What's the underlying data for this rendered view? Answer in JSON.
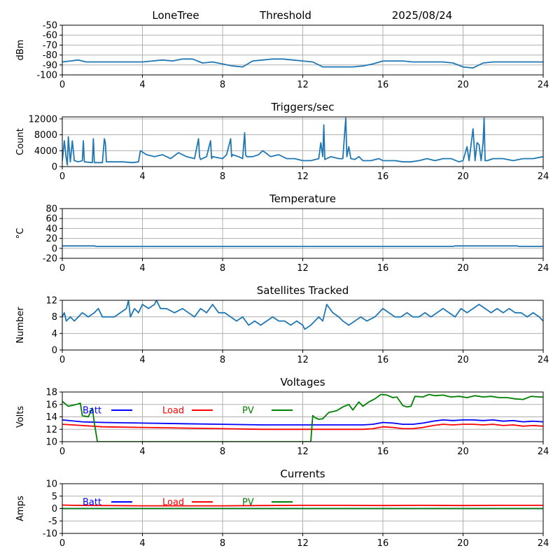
{
  "header": {
    "station": "LoneTree",
    "mode": "Threshold",
    "date": "2025/08/24"
  },
  "chart_data": [
    {
      "type": "line",
      "title": "",
      "ylabel": "dBm",
      "xlim": [
        0,
        24
      ],
      "ylim": [
        -100,
        -50
      ],
      "xticks": [
        0,
        4,
        8,
        12,
        16,
        20,
        24
      ],
      "yticks": [
        -100,
        -90,
        -80,
        -70,
        -60,
        -50
      ],
      "grid": true,
      "series": [
        {
          "color": "#1f77b4",
          "x": [
            0,
            0.4,
            0.8,
            1.2,
            2,
            3,
            4,
            4.5,
            5,
            5.5,
            6,
            6.5,
            7,
            7.5,
            8,
            8.5,
            9,
            9.5,
            10,
            10.5,
            11,
            11.5,
            12,
            12.5,
            13,
            13.5,
            14,
            14.5,
            15,
            15.5,
            16,
            16.5,
            17,
            17.5,
            18,
            18.5,
            19,
            19.5,
            20,
            20.5,
            21,
            21.5,
            22,
            22.5,
            23,
            24
          ],
          "y": [
            -87,
            -86,
            -85,
            -87,
            -87,
            -87,
            -87,
            -86,
            -85,
            -86,
            -84,
            -84,
            -88,
            -87,
            -89,
            -91,
            -92,
            -86,
            -85,
            -84,
            -84,
            -85,
            -86,
            -87,
            -92,
            -92,
            -92,
            -92,
            -91,
            -89,
            -86,
            -86,
            -86,
            -87,
            -87,
            -87,
            -87,
            -88,
            -92,
            -93,
            -88,
            -87,
            -87,
            -87,
            -87,
            -87
          ]
        }
      ]
    },
    {
      "type": "line",
      "title": "Triggers/sec",
      "ylabel": "Count",
      "xlim": [
        0,
        24
      ],
      "ylim": [
        0,
        12500
      ],
      "xticks": [
        0,
        4,
        8,
        12,
        16,
        20,
        24
      ],
      "yticks": [
        0,
        4000,
        8000,
        12000
      ],
      "grid": true,
      "series": [
        {
          "color": "#1f77b4",
          "x": [
            0,
            0.1,
            0.2,
            0.25,
            0.3,
            0.4,
            0.5,
            0.6,
            0.8,
            1,
            1.05,
            1.1,
            1.5,
            1.55,
            1.6,
            2,
            2.1,
            2.15,
            2.2,
            3,
            3.5,
            3.8,
            3.9,
            4.2,
            4.6,
            5,
            5.4,
            5.8,
            6.2,
            6.6,
            6.8,
            6.85,
            6.9,
            7.2,
            7.4,
            7.45,
            7.5,
            8,
            8.2,
            8.4,
            8.45,
            8.5,
            8.8,
            9,
            9.1,
            9.15,
            9.2,
            9.5,
            9.8,
            10,
            10.4,
            10.8,
            11.2,
            11.6,
            12,
            12.4,
            12.8,
            12.9,
            13,
            13.05,
            13.1,
            13.4,
            13.8,
            14,
            14.1,
            14.15,
            14.2,
            14.3,
            14.4,
            14.6,
            14.8,
            15,
            15.4,
            15.8,
            16,
            16.2,
            16.6,
            17,
            17.4,
            17.8,
            18.2,
            18.6,
            19,
            19.4,
            19.8,
            20,
            20.2,
            20.3,
            20.5,
            20.6,
            20.7,
            20.8,
            20.9,
            21,
            21.05,
            21.1,
            21.2,
            21.5,
            22,
            22.5,
            23,
            23.5,
            24
          ],
          "y": [
            1500,
            6500,
            2000,
            400,
            7500,
            1200,
            6500,
            1500,
            1200,
            1500,
            6500,
            1200,
            1000,
            7000,
            1000,
            1000,
            7000,
            6000,
            1200,
            1200,
            1000,
            1200,
            4000,
            3000,
            2500,
            3000,
            2000,
            3500,
            2500,
            2000,
            7000,
            2500,
            1800,
            2500,
            6500,
            2000,
            2500,
            2000,
            3000,
            7000,
            2500,
            3000,
            2500,
            2000,
            8500,
            3000,
            2500,
            2500,
            3000,
            4000,
            2500,
            3000,
            2000,
            2000,
            1500,
            1500,
            2000,
            6000,
            2500,
            10500,
            1800,
            2500,
            2000,
            2000,
            9000,
            12200,
            2500,
            5000,
            2000,
            1800,
            2500,
            1500,
            1500,
            2000,
            1500,
            1500,
            1500,
            1200,
            1200,
            1500,
            2000,
            1500,
            2000,
            2000,
            1200,
            1500,
            5000,
            1500,
            9500,
            1500,
            6000,
            5500,
            1500,
            6000,
            12200,
            1500,
            1500,
            2000,
            2000,
            1500,
            2000,
            2000,
            2500
          ]
        }
      ]
    },
    {
      "type": "line",
      "title": "Temperature",
      "ylabel": "°C",
      "xlim": [
        0,
        24
      ],
      "ylim": [
        -20,
        80
      ],
      "xticks": [
        0,
        4,
        8,
        12,
        16,
        20,
        24
      ],
      "yticks": [
        -20,
        0,
        20,
        40,
        60,
        80
      ],
      "grid": true,
      "series": [
        {
          "color": "#1f77b4",
          "x": [
            0,
            1.6,
            1.7,
            19.5,
            19.6,
            22.7,
            22.8,
            24
          ],
          "y": [
            5,
            5,
            4,
            4,
            5,
            5,
            4,
            4
          ]
        }
      ]
    },
    {
      "type": "line",
      "title": "Satellites Tracked",
      "ylabel": "Number",
      "xlim": [
        0,
        24
      ],
      "ylim": [
        0,
        12
      ],
      "xticks": [
        0,
        4,
        8,
        12,
        16,
        20,
        24
      ],
      "yticks": [
        0,
        4,
        8,
        12
      ],
      "grid": true,
      "series": [
        {
          "color": "#1f77b4",
          "x": [
            0,
            0.1,
            0.2,
            0.4,
            0.6,
            0.8,
            1,
            1.3,
            1.6,
            1.8,
            2,
            2.3,
            2.6,
            2.9,
            3.2,
            3.3,
            3.4,
            3.6,
            3.8,
            4,
            4.3,
            4.6,
            4.7,
            4.9,
            5.2,
            5.6,
            6,
            6.3,
            6.6,
            6.9,
            7.2,
            7.5,
            7.8,
            8.1,
            8.4,
            8.7,
            9,
            9.3,
            9.6,
            9.9,
            10.2,
            10.5,
            10.8,
            11.1,
            11.4,
            11.7,
            12,
            12.1,
            12.4,
            12.8,
            13,
            13.2,
            13.5,
            13.8,
            14,
            14.3,
            14.6,
            14.9,
            15.2,
            15.6,
            16,
            16.3,
            16.6,
            16.9,
            17.2,
            17.5,
            17.8,
            18.1,
            18.4,
            18.7,
            19,
            19.3,
            19.6,
            19.9,
            20.2,
            20.5,
            20.8,
            21.1,
            21.4,
            21.7,
            22,
            22.3,
            22.6,
            22.9,
            23.2,
            23.5,
            23.8,
            24
          ],
          "y": [
            8,
            9,
            7,
            8,
            7,
            8,
            9,
            8,
            9,
            10,
            8,
            8,
            8,
            9,
            10,
            12,
            8,
            10,
            9,
            11,
            10,
            11,
            12,
            10,
            10,
            9,
            10,
            9,
            8,
            10,
            9,
            11,
            9,
            9,
            8,
            7,
            8,
            6,
            7,
            6,
            7,
            8,
            7,
            7,
            6,
            7,
            6,
            5,
            6,
            8,
            7,
            11,
            9,
            8,
            7,
            6,
            7,
            8,
            7,
            8,
            10,
            9,
            8,
            8,
            9,
            8,
            8,
            9,
            8,
            9,
            10,
            9,
            8,
            10,
            9,
            10,
            11,
            10,
            9,
            10,
            9,
            10,
            9,
            9,
            8,
            9,
            8,
            7
          ]
        }
      ]
    },
    {
      "type": "line",
      "title": "Voltages",
      "ylabel": "Volts",
      "xlim": [
        0,
        24
      ],
      "ylim": [
        10,
        18
      ],
      "xticks": [
        0,
        4,
        8,
        12,
        16,
        20,
        24
      ],
      "yticks": [
        10,
        12,
        14,
        16,
        18
      ],
      "grid": true,
      "legend": [
        {
          "name": "Batt",
          "color": "#0000ff"
        },
        {
          "name": "Load",
          "color": "#ff0000"
        },
        {
          "name": "PV",
          "color": "#008000"
        }
      ],
      "series": [
        {
          "name": "Batt",
          "color": "#0000ff",
          "x": [
            0,
            1,
            2,
            4,
            6,
            8,
            10,
            12,
            13,
            14,
            15,
            15.5,
            16,
            16.5,
            17,
            17.5,
            18,
            18.5,
            19,
            19.5,
            20,
            20.5,
            21,
            21.5,
            22,
            22.5,
            23,
            23.5,
            24
          ],
          "y": [
            13.5,
            13.2,
            13.1,
            13,
            12.9,
            12.8,
            12.7,
            12.7,
            12.7,
            12.7,
            12.7,
            12.8,
            13.1,
            13.0,
            12.8,
            12.8,
            13.0,
            13.3,
            13.5,
            13.4,
            13.5,
            13.5,
            13.4,
            13.5,
            13.3,
            13.4,
            13.2,
            13.3,
            13.2
          ]
        },
        {
          "name": "Load",
          "color": "#ff0000",
          "x": [
            0,
            1,
            2,
            4,
            6,
            8,
            10,
            12,
            13,
            14,
            15,
            15.5,
            16,
            16.5,
            17,
            17.5,
            18,
            18.5,
            19,
            19.5,
            20,
            20.5,
            21,
            21.5,
            22,
            22.5,
            23,
            23.5,
            24
          ],
          "y": [
            12.8,
            12.6,
            12.4,
            12.3,
            12.2,
            12.1,
            12.0,
            12.0,
            12.0,
            12.0,
            12.0,
            12.1,
            12.4,
            12.3,
            12.1,
            12.1,
            12.3,
            12.6,
            12.8,
            12.7,
            12.8,
            12.8,
            12.7,
            12.8,
            12.6,
            12.7,
            12.5,
            12.6,
            12.5
          ]
        },
        {
          "name": "PV",
          "color": "#008000",
          "x": [
            0,
            0.3,
            0.7,
            0.9,
            1.0,
            1.3,
            1.5,
            1.6,
            1.7,
            1.75,
            12.4,
            12.5,
            12.6,
            12.8,
            13,
            13.3,
            13.7,
            14,
            14.3,
            14.5,
            14.8,
            15,
            15.3,
            15.6,
            15.9,
            16.2,
            16.5,
            16.7,
            17,
            17.2,
            17.4,
            17.6,
            18,
            18.3,
            18.6,
            19,
            19.4,
            19.8,
            20.2,
            20.6,
            21,
            21.4,
            21.8,
            22.2,
            22.6,
            23,
            23.4,
            23.8,
            24
          ],
          "y": [
            16.5,
            15.7,
            16.0,
            16.2,
            14.2,
            14.0,
            15.4,
            13.0,
            11.0,
            10.0,
            10.0,
            14.2,
            13.9,
            13.6,
            13.7,
            14.7,
            15.0,
            15.6,
            16.0,
            15.1,
            16.4,
            15.7,
            16.4,
            16.9,
            17.6,
            17.5,
            17.1,
            17.2,
            15.8,
            15.6,
            15.7,
            17.3,
            17.2,
            17.6,
            17.4,
            17.5,
            17.2,
            17.3,
            17.1,
            17.4,
            17.2,
            17.3,
            17.1,
            17.1,
            16.9,
            16.8,
            17.3,
            17.2,
            17.2
          ]
        }
      ]
    },
    {
      "type": "line",
      "title": "Currents",
      "ylabel": "Amps",
      "xlim": [
        0,
        24
      ],
      "ylim": [
        -10,
        10
      ],
      "xticks": [
        0,
        4,
        8,
        12,
        16,
        20,
        24
      ],
      "yticks": [
        -10,
        -5,
        0,
        5,
        10
      ],
      "grid": true,
      "legend": [
        {
          "name": "Batt",
          "color": "#0000ff"
        },
        {
          "name": "Load",
          "color": "#ff0000"
        },
        {
          "name": "PV",
          "color": "#008000"
        }
      ],
      "series": [
        {
          "name": "Batt",
          "color": "#0000ff",
          "x": [
            0,
            4,
            8,
            12,
            16,
            20,
            24
          ],
          "y": [
            0,
            0,
            0,
            0,
            0,
            0,
            0
          ]
        },
        {
          "name": "Load",
          "color": "#ff0000",
          "x": [
            0,
            0.5,
            2,
            4,
            6,
            8,
            10,
            12,
            14,
            16,
            18,
            20,
            22,
            24
          ],
          "y": [
            1.4,
            1.3,
            1.2,
            1.1,
            1.1,
            1.1,
            1.2,
            1.3,
            1.3,
            1.2,
            1.3,
            1.2,
            1.3,
            1.3
          ]
        },
        {
          "name": "PV",
          "color": "#008000",
          "x": [
            0,
            4,
            8,
            12,
            16,
            20,
            24
          ],
          "y": [
            0,
            0,
            0,
            0,
            0,
            0,
            0
          ]
        }
      ]
    }
  ]
}
